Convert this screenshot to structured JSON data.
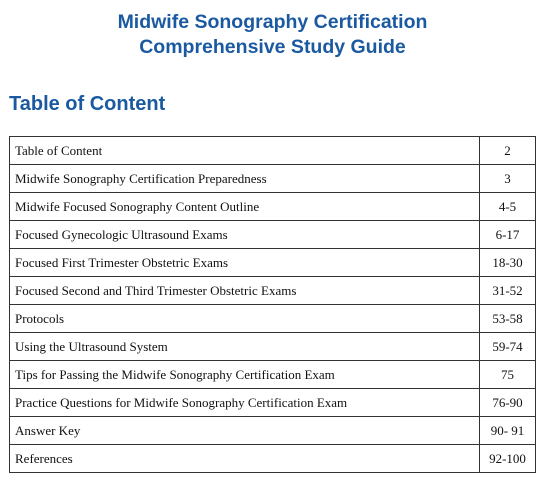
{
  "document": {
    "title_line1": "Midwife Sonography Certification",
    "title_line2": "Comprehensive Study Guide",
    "toc_heading": "Table of Content"
  },
  "toc": {
    "rows": [
      {
        "title": "Table of Content",
        "pages": "2"
      },
      {
        "title": "Midwife Sonography Certification Preparedness",
        "pages": "3"
      },
      {
        "title": "Midwife Focused Sonography Content Outline",
        "pages": "4-5"
      },
      {
        "title": "Focused Gynecologic Ultrasound Exams",
        "pages": "6-17"
      },
      {
        "title": "Focused First Trimester Obstetric Exams",
        "pages": "18-30"
      },
      {
        "title": "Focused Second and Third Trimester Obstetric Exams",
        "pages": "31-52"
      },
      {
        "title": "Protocols",
        "pages": "53-58"
      },
      {
        "title": "Using the Ultrasound System",
        "pages": "59-74"
      },
      {
        "title": "Tips for Passing the Midwife Sonography Certification Exam",
        "pages": "75"
      },
      {
        "title": "Practice Questions for Midwife Sonography Certification Exam",
        "pages": "76-90"
      },
      {
        "title": "Answer Key",
        "pages": "90- 91"
      },
      {
        "title": "References",
        "pages": "92-100"
      }
    ]
  },
  "colors": {
    "heading": "#1b5aa0",
    "table_border": "#333333"
  }
}
